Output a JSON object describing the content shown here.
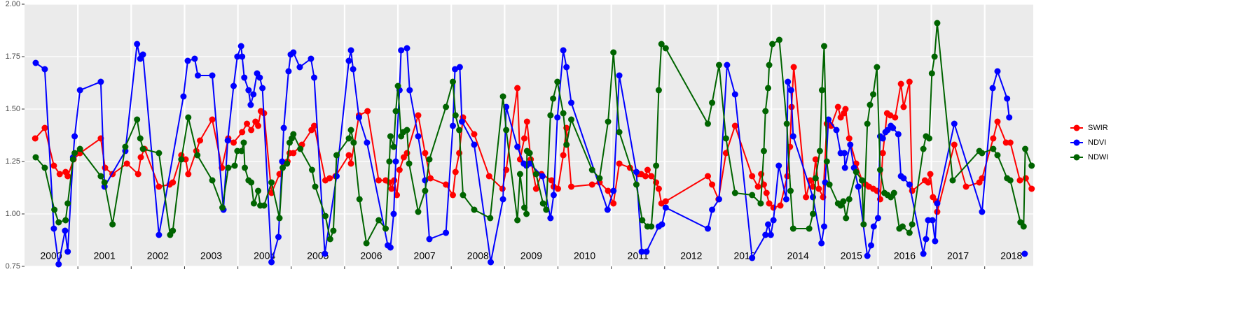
{
  "chart_data": {
    "type": "line",
    "xlim": [
      2000,
      2018.91
    ],
    "xticks": [
      2001,
      2002,
      2003,
      2004,
      2005,
      2006,
      2007,
      2008,
      2009,
      2010,
      2011,
      2012,
      2013,
      2014,
      2015,
      2016,
      2017,
      2018
    ],
    "year_labels": [
      {
        "value": 2000.5,
        "label": "2000"
      },
      {
        "value": 2001.5,
        "label": "2001"
      },
      {
        "value": 2002.5,
        "label": "2002"
      },
      {
        "value": 2003.5,
        "label": "2003"
      },
      {
        "value": 2004.5,
        "label": "2004"
      },
      {
        "value": 2005.5,
        "label": "2005"
      },
      {
        "value": 2006.5,
        "label": "2006"
      },
      {
        "value": 2007.5,
        "label": "2007"
      },
      {
        "value": 2008.5,
        "label": "2008"
      },
      {
        "value": 2009.5,
        "label": "2009"
      },
      {
        "value": 2010.5,
        "label": "2010"
      },
      {
        "value": 2011.5,
        "label": "2011"
      },
      {
        "value": 2012.5,
        "label": "2012"
      },
      {
        "value": 2013.5,
        "label": "2013"
      },
      {
        "value": 2014.5,
        "label": "2014"
      },
      {
        "value": 2015.5,
        "label": "2015"
      },
      {
        "value": 2016.5,
        "label": "2016"
      },
      {
        "value": 2017.5,
        "label": "2017"
      },
      {
        "value": 2018.5,
        "label": "2018"
      }
    ],
    "ylim": [
      0.75,
      2.0
    ],
    "yticks": [
      {
        "value": 0.75,
        "label": "0.75"
      },
      {
        "value": 1.0,
        "label": "1.00"
      },
      {
        "value": 1.25,
        "label": "1.25"
      },
      {
        "value": 1.5,
        "label": "1.50"
      },
      {
        "value": 1.75,
        "label": "1.75"
      },
      {
        "value": 2.0,
        "label": "2.00"
      }
    ],
    "grid": true,
    "legend": "right",
    "series": [
      {
        "name": "SWIR",
        "color": "#ff0000",
        "x": [
          2000.2,
          2000.38,
          2000.55,
          2000.66,
          2000.77,
          2000.81,
          2000.92,
          2001.04,
          2001.43,
          2001.51,
          2001.65,
          2001.92,
          2002.13,
          2002.18,
          2002.25,
          2002.52,
          2002.72,
          2002.78,
          2002.94,
          2003.02,
          2003.07,
          2003.22,
          2003.29,
          2003.52,
          2003.7,
          2003.82,
          2003.92,
          2004.08,
          2004.17,
          2004.25,
          2004.33,
          2004.38,
          2004.43,
          2004.49,
          2004.63,
          2004.78,
          2004.86,
          2004.93,
          2004.97,
          2005.04,
          2005.2,
          2005.38,
          2005.43,
          2005.64,
          2005.72,
          2005.83,
          2006.08,
          2006.12,
          2006.27,
          2006.43,
          2006.64,
          2006.77,
          2006.84,
          2006.88,
          2006.93,
          2006.98,
          2007.03,
          2007.11,
          2007.17,
          2007.38,
          2007.51,
          2007.61,
          2007.9,
          2008.03,
          2008.08,
          2008.15,
          2008.22,
          2008.43,
          2008.71,
          2008.96,
          2009.03,
          2009.24,
          2009.29,
          2009.37,
          2009.42,
          2009.49,
          2009.59,
          2009.69,
          2009.88,
          2009.92,
          2010.0,
          2010.1,
          2010.16,
          2010.25,
          2010.64,
          2010.78,
          2010.94,
          2011.04,
          2011.15,
          2011.35,
          2011.5,
          2011.56,
          2011.64,
          2011.68,
          2011.75,
          2011.84,
          2011.89,
          2011.94,
          2012.02,
          2012.81,
          2012.89,
          2013.01,
          2013.15,
          2013.32,
          2013.64,
          2013.75,
          2013.81,
          2013.86,
          2013.91,
          2013.96,
          2014.04,
          2014.17,
          2014.3,
          2014.35,
          2014.38,
          2014.42,
          2014.65,
          2014.73,
          2014.78,
          2014.83,
          2014.89,
          2014.97,
          2015.04,
          2015.12,
          2015.25,
          2015.3,
          2015.36,
          2015.39,
          2015.46,
          2015.59,
          2015.7,
          2015.77,
          2015.83,
          2015.91,
          2015.98,
          2016.04,
          2016.09,
          2016.17,
          2016.23,
          2016.32,
          2016.43,
          2016.48,
          2016.59,
          2016.64,
          2016.88,
          2016.94,
          2016.98,
          2017.03,
          2017.09,
          2017.11,
          2017.43,
          2017.65,
          2017.9,
          2017.95,
          2018.16,
          2018.24,
          2018.4,
          2018.48,
          2018.66,
          2018.77,
          2018.88
        ],
        "values": [
          1.36,
          1.41,
          1.23,
          1.19,
          1.2,
          1.18,
          1.26,
          1.29,
          1.36,
          1.22,
          1.19,
          1.24,
          1.19,
          1.27,
          1.31,
          1.13,
          1.14,
          1.15,
          1.28,
          1.26,
          1.19,
          1.3,
          1.35,
          1.45,
          1.22,
          1.36,
          1.34,
          1.39,
          1.43,
          1.4,
          1.44,
          1.42,
          1.49,
          1.48,
          1.1,
          1.19,
          1.24,
          1.25,
          1.29,
          1.29,
          1.33,
          1.4,
          1.42,
          1.16,
          1.17,
          1.18,
          1.28,
          1.24,
          1.47,
          1.49,
          1.16,
          1.16,
          1.15,
          1.12,
          1.16,
          1.09,
          1.21,
          1.27,
          1.29,
          1.47,
          1.29,
          1.17,
          1.14,
          1.09,
          1.2,
          1.29,
          1.46,
          1.38,
          1.18,
          1.12,
          1.21,
          1.6,
          1.26,
          1.36,
          1.44,
          1.26,
          1.12,
          1.19,
          1.16,
          1.13,
          1.12,
          1.28,
          1.41,
          1.13,
          1.14,
          1.15,
          1.11,
          1.05,
          1.24,
          1.22,
          1.19,
          1.19,
          1.18,
          1.21,
          1.18,
          1.15,
          1.12,
          1.05,
          1.06,
          1.18,
          1.14,
          1.07,
          1.29,
          1.42,
          1.18,
          1.13,
          1.19,
          1.14,
          1.1,
          1.05,
          1.03,
          1.04,
          1.18,
          1.32,
          1.51,
          1.7,
          1.08,
          1.16,
          1.13,
          1.26,
          1.12,
          1.08,
          1.43,
          1.42,
          1.51,
          1.46,
          1.48,
          1.5,
          1.36,
          1.24,
          1.16,
          1.14,
          1.13,
          1.12,
          1.11,
          1.07,
          1.29,
          1.48,
          1.47,
          1.46,
          1.62,
          1.51,
          1.63,
          1.11,
          1.16,
          1.15,
          1.19,
          1.08,
          1.06,
          1.01,
          1.33,
          1.13,
          1.15,
          1.17,
          1.36,
          1.44,
          1.34,
          1.34,
          1.16,
          1.17,
          1.12
        ]
      },
      {
        "name": "NDVI",
        "color": "#0000ff",
        "x": [
          2000.21,
          2000.38,
          2000.55,
          2000.64,
          2000.76,
          2000.81,
          2000.91,
          2000.94,
          2001.04,
          2001.43,
          2001.5,
          2001.89,
          2002.11,
          2002.17,
          2002.22,
          2002.52,
          2002.98,
          2003.06,
          2003.19,
          2003.25,
          2003.52,
          2003.73,
          2003.81,
          2003.92,
          2003.99,
          2004.06,
          2004.08,
          2004.12,
          2004.2,
          2004.24,
          2004.29,
          2004.36,
          2004.41,
          2004.46,
          2004.63,
          2004.76,
          2004.83,
          2004.86,
          2004.95,
          2004.99,
          2005.04,
          2005.16,
          2005.37,
          2005.43,
          2005.63,
          2005.85,
          2006.08,
          2006.12,
          2006.16,
          2006.27,
          2006.42,
          2006.81,
          2006.86,
          2006.92,
          2006.96,
          2007.03,
          2007.06,
          2007.17,
          2007.22,
          2007.38,
          2007.51,
          2007.59,
          2007.9,
          2008.03,
          2008.07,
          2008.16,
          2008.2,
          2008.43,
          2008.74,
          2008.97,
          2009.03,
          2009.24,
          2009.36,
          2009.41,
          2009.47,
          2009.71,
          2009.86,
          2009.92,
          2009.99,
          2010.1,
          2010.16,
          2010.25,
          2010.93,
          2011.04,
          2011.15,
          2011.47,
          2011.57,
          2011.66,
          2011.89,
          2011.95,
          2012.02,
          2012.81,
          2012.89,
          2013.02,
          2013.17,
          2013.32,
          2013.64,
          2013.89,
          2013.94,
          2013.99,
          2014.04,
          2014.14,
          2014.28,
          2014.31,
          2014.37,
          2014.41,
          2014.78,
          2014.94,
          2014.99,
          2015.01,
          2015.07,
          2015.22,
          2015.3,
          2015.37,
          2015.38,
          2015.48,
          2015.55,
          2015.63,
          2015.8,
          2015.87,
          2015.92,
          2016.0,
          2016.04,
          2016.09,
          2016.14,
          2016.18,
          2016.24,
          2016.28,
          2016.38,
          2016.43,
          2016.48,
          2016.59,
          2016.85,
          2016.9,
          2016.94,
          2017.02,
          2017.07,
          2017.11,
          2017.43,
          2017.95,
          2018.15,
          2018.24,
          2018.42,
          2018.46,
          null,
          2018.75
        ],
        "values": [
          1.72,
          1.69,
          0.93,
          0.76,
          0.92,
          0.82,
          1.27,
          1.37,
          1.59,
          1.63,
          1.13,
          1.3,
          1.81,
          1.74,
          1.76,
          0.9,
          1.56,
          1.73,
          1.74,
          1.66,
          1.66,
          1.02,
          1.35,
          1.61,
          1.75,
          1.8,
          1.75,
          1.65,
          1.59,
          1.52,
          1.57,
          1.67,
          1.65,
          1.6,
          0.77,
          0.89,
          1.25,
          1.41,
          1.68,
          1.76,
          1.77,
          1.7,
          1.74,
          1.65,
          0.81,
          1.18,
          1.73,
          1.78,
          1.69,
          1.46,
          1.34,
          0.85,
          0.84,
          1.0,
          1.25,
          1.59,
          1.78,
          1.79,
          1.59,
          1.37,
          1.16,
          0.88,
          0.91,
          1.42,
          1.69,
          1.7,
          1.44,
          1.33,
          0.77,
          1.07,
          1.51,
          1.32,
          1.24,
          1.23,
          1.24,
          1.18,
          0.98,
          1.09,
          1.46,
          1.78,
          1.7,
          1.53,
          1.02,
          1.11,
          1.66,
          1.2,
          0.82,
          0.82,
          0.94,
          0.95,
          1.03,
          0.93,
          1.02,
          1.07,
          1.71,
          1.57,
          0.79,
          0.9,
          0.95,
          0.9,
          0.97,
          1.23,
          1.07,
          1.63,
          1.59,
          1.37,
          1.08,
          0.86,
          0.94,
          1.15,
          1.45,
          1.4,
          1.29,
          1.29,
          1.22,
          1.33,
          1.22,
          1.13,
          0.8,
          0.85,
          0.94,
          0.98,
          1.37,
          1.36,
          1.39,
          1.4,
          1.42,
          1.41,
          1.38,
          1.18,
          1.17,
          1.14,
          0.81,
          0.88,
          0.97,
          0.97,
          0.87,
          1.05,
          1.43,
          1.01,
          1.6,
          1.68,
          1.55,
          1.46,
          null,
          0.81
        ]
      },
      {
        "name": "NDWI",
        "color": "#006400",
        "x": [
          2000.21,
          2000.38,
          2000.56,
          2000.64,
          2000.77,
          2000.81,
          2000.91,
          2000.94,
          2001.04,
          2001.43,
          2001.5,
          2001.65,
          2001.89,
          2002.11,
          2002.17,
          2002.22,
          2002.52,
          2002.73,
          2002.78,
          2002.94,
          2003.07,
          2003.24,
          2003.52,
          2003.71,
          2003.82,
          2003.94,
          2003.99,
          2004.07,
          2004.11,
          2004.13,
          2004.2,
          2004.25,
          2004.3,
          2004.38,
          2004.42,
          2004.49,
          2004.63,
          2004.78,
          2004.84,
          2004.92,
          2004.97,
          2005.01,
          2005.04,
          2005.17,
          2005.39,
          2005.45,
          2005.64,
          2005.73,
          2005.79,
          2005.85,
          2006.08,
          2006.12,
          2006.17,
          2006.28,
          2006.41,
          2006.64,
          2006.77,
          2006.84,
          2006.86,
          2006.92,
          2006.96,
          2007.0,
          2007.06,
          2007.1,
          2007.17,
          2007.21,
          2007.38,
          2007.51,
          2007.59,
          2007.9,
          2008.03,
          2008.08,
          2008.15,
          2008.22,
          2008.43,
          2008.73,
          2008.97,
          2009.03,
          2009.24,
          2009.29,
          2009.37,
          2009.41,
          2009.42,
          2009.47,
          2009.59,
          2009.72,
          2009.78,
          2009.86,
          2009.91,
          2009.99,
          2010.1,
          2010.16,
          2010.25,
          2010.64,
          2010.78,
          2010.94,
          2011.04,
          2011.15,
          2011.47,
          2011.58,
          2011.68,
          2011.75,
          2011.84,
          2011.89,
          2011.94,
          2012.02,
          2012.81,
          2012.89,
          2013.02,
          2013.15,
          2013.32,
          2013.64,
          2013.8,
          2013.86,
          2013.89,
          2013.94,
          2013.96,
          2014.02,
          2014.15,
          2014.29,
          2014.36,
          2014.41,
          2014.71,
          2014.78,
          2014.83,
          2014.91,
          2014.95,
          2014.99,
          2015.04,
          2015.09,
          2015.25,
          2015.3,
          2015.35,
          2015.4,
          2015.46,
          2015.59,
          2015.7,
          2015.73,
          2015.8,
          2015.85,
          2015.91,
          2015.98,
          2016.04,
          2016.12,
          2016.18,
          2016.24,
          2016.3,
          2016.4,
          2016.46,
          2016.59,
          2016.64,
          2016.85,
          2016.9,
          2016.96,
          2017.01,
          2017.06,
          2017.11,
          2017.4,
          2017.9,
          2017.95,
          2018.16,
          2018.24,
          2018.42,
          2018.48,
          2018.67,
          2018.73,
          2018.76,
          2018.88
        ],
        "values": [
          1.27,
          1.22,
          1.02,
          0.96,
          0.97,
          1.05,
          1.26,
          1.29,
          1.31,
          1.18,
          1.15,
          0.95,
          1.32,
          1.45,
          1.36,
          1.31,
          1.29,
          0.9,
          0.92,
          1.26,
          1.46,
          1.28,
          1.16,
          1.03,
          1.22,
          1.23,
          1.3,
          1.3,
          1.34,
          1.22,
          1.16,
          1.15,
          1.05,
          1.11,
          1.04,
          1.04,
          1.15,
          0.98,
          1.22,
          1.24,
          1.34,
          1.36,
          1.38,
          1.31,
          1.21,
          1.13,
          0.99,
          0.88,
          0.92,
          1.28,
          1.36,
          1.4,
          1.34,
          1.07,
          0.86,
          0.97,
          0.93,
          1.25,
          1.37,
          1.32,
          1.49,
          1.61,
          1.37,
          1.39,
          1.4,
          1.24,
          1.01,
          1.11,
          1.26,
          1.51,
          1.63,
          1.47,
          1.4,
          1.09,
          1.02,
          0.98,
          1.56,
          1.4,
          0.97,
          1.19,
          1.03,
          1.0,
          1.3,
          1.29,
          1.19,
          1.05,
          1.02,
          1.47,
          1.55,
          1.63,
          1.48,
          1.33,
          1.45,
          1.21,
          1.17,
          1.44,
          1.77,
          1.39,
          1.14,
          0.97,
          0.94,
          0.94,
          1.23,
          1.59,
          1.81,
          1.79,
          1.43,
          1.53,
          1.71,
          1.36,
          1.1,
          1.09,
          1.05,
          1.3,
          1.49,
          1.6,
          1.71,
          1.81,
          1.83,
          1.43,
          1.11,
          0.93,
          0.93,
          1.0,
          1.17,
          1.3,
          1.59,
          1.8,
          1.25,
          1.14,
          1.05,
          1.04,
          1.06,
          0.98,
          1.07,
          1.2,
          1.16,
          0.95,
          1.43,
          1.52,
          1.57,
          1.7,
          1.21,
          1.1,
          1.09,
          1.08,
          1.1,
          0.93,
          0.94,
          0.91,
          0.95,
          1.31,
          1.37,
          1.36,
          1.67,
          1.75,
          1.91,
          1.16,
          1.3,
          1.29,
          1.31,
          1.28,
          1.17,
          1.16,
          0.96,
          0.94,
          1.31,
          1.23
        ]
      }
    ]
  }
}
